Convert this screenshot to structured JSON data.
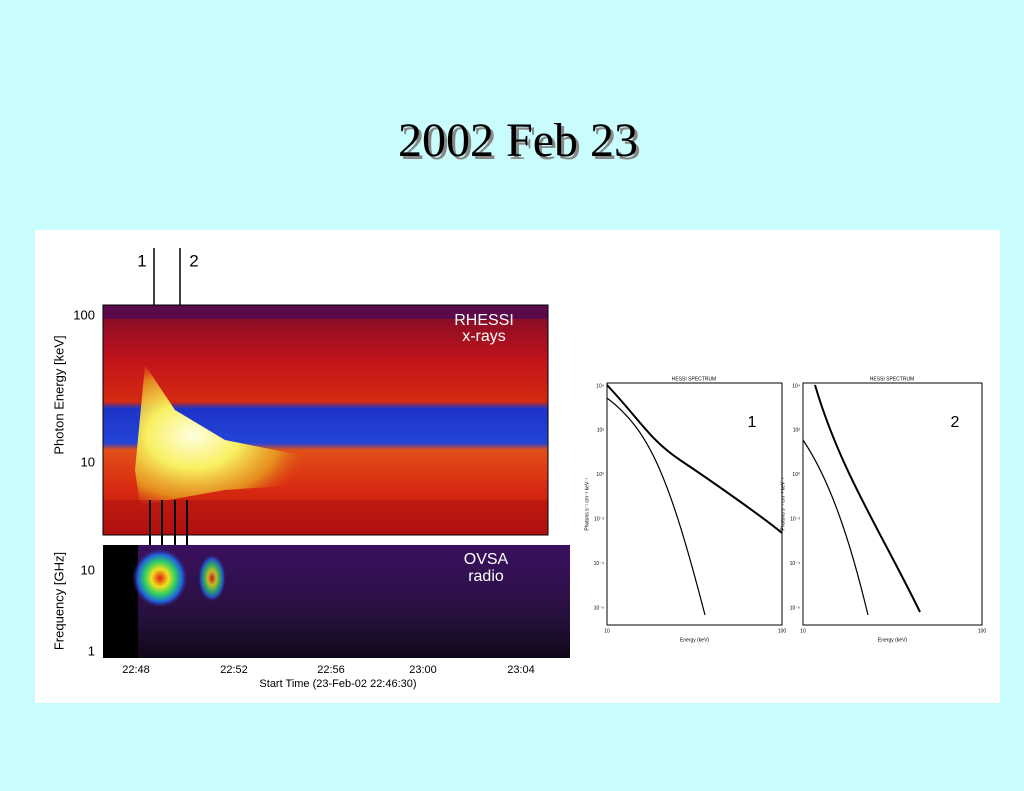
{
  "title": "2002 Feb 23",
  "figure": {
    "markers": [
      "1",
      "2"
    ],
    "xray_panel": {
      "instrument": "RHESSI",
      "band": "x-rays",
      "ylabel": "Photon Energy [keV]",
      "yticks": [
        "100",
        "10"
      ]
    },
    "radio_panel": {
      "instrument": "OVSA",
      "band": "radio",
      "ylabel": "Frequency [GHz]",
      "yticks": [
        "10",
        "1"
      ],
      "xticks": [
        "22:48",
        "22:52",
        "22:56",
        "23:00",
        "23:04"
      ],
      "xlabel": "Start Time (23-Feb-02 22:46:30)"
    },
    "spectra": [
      {
        "title": "HESSI SPECTRUM",
        "label": "1"
      },
      {
        "title": "HESSI SPECTRUM",
        "label": "2"
      }
    ],
    "spectrum_xlabel": "Energy (keV)",
    "spectrum_ylabel": "Photons s⁻¹ cm⁻² keV⁻¹",
    "spectrum_xticks": [
      "10",
      "100"
    ],
    "spectrum_yticks": [
      "10⁴",
      "10²",
      "10⁰",
      "10⁻²",
      "10⁻⁴",
      "10⁻⁶"
    ]
  }
}
